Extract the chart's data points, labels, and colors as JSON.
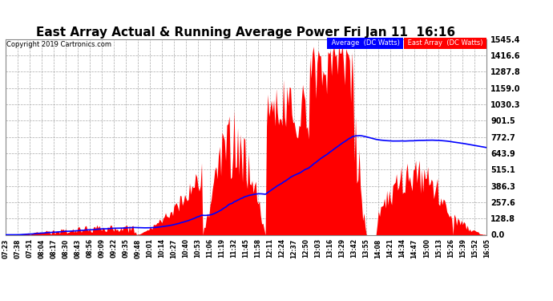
{
  "title": "East Array Actual & Running Average Power Fri Jan 11  16:16",
  "copyright": "Copyright 2019 Cartronics.com",
  "legend_label_avg": "Average  (DC Watts)",
  "legend_label_east": "East Array  (DC Watts)",
  "yticks": [
    0.0,
    128.8,
    257.6,
    386.3,
    515.1,
    643.9,
    772.7,
    901.5,
    1030.3,
    1159.0,
    1287.8,
    1416.6,
    1545.4
  ],
  "ymax": 1545.4,
  "bg_color": "#ffffff",
  "plot_bg_color": "#ffffff",
  "grid_color": "#aaaaaa",
  "title_color": "#000000",
  "tick_color": "#000000",
  "time_labels": [
    "07:23",
    "07:38",
    "07:51",
    "08:04",
    "08:17",
    "08:30",
    "08:43",
    "08:56",
    "09:09",
    "09:22",
    "09:35",
    "09:48",
    "10:01",
    "10:14",
    "10:27",
    "10:40",
    "10:53",
    "11:06",
    "11:19",
    "11:32",
    "11:45",
    "11:58",
    "12:11",
    "12:24",
    "12:37",
    "12:50",
    "13:03",
    "13:16",
    "13:29",
    "13:42",
    "13:55",
    "14:08",
    "14:21",
    "14:34",
    "14:47",
    "15:00",
    "15:13",
    "15:26",
    "15:39",
    "15:52",
    "16:05"
  ]
}
